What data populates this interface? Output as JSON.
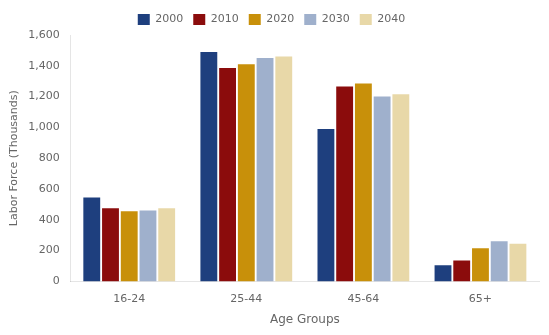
{
  "chart_data": {
    "type": "bar",
    "xlabel": "Age Groups",
    "ylabel": "Labor Force (Thousands)",
    "categories": [
      "16-24",
      "25-44",
      "45-64",
      "65+"
    ],
    "series": [
      {
        "name": "2000",
        "color": "#1e3f7e",
        "values": [
          545,
          1490,
          990,
          105
        ]
      },
      {
        "name": "2010",
        "color": "#8b0c0c",
        "values": [
          475,
          1385,
          1265,
          135
        ]
      },
      {
        "name": "2020",
        "color": "#c8900a",
        "values": [
          455,
          1410,
          1285,
          215
        ]
      },
      {
        "name": "2030",
        "color": "#9fb0cc",
        "values": [
          460,
          1450,
          1200,
          260
        ]
      },
      {
        "name": "2040",
        "color": "#e8d8a8",
        "values": [
          475,
          1460,
          1215,
          245
        ]
      }
    ],
    "ylim": [
      0,
      1600
    ],
    "yticks": [
      0,
      200,
      400,
      600,
      800,
      {
        "value": 1000,
        "label": "1,000"
      },
      {
        "value": 1200,
        "label": "1,200"
      },
      {
        "value": 1400,
        "label": "1,400"
      },
      {
        "value": 1600,
        "label": "1,600"
      }
    ],
    "grid": false,
    "legend": "top"
  }
}
